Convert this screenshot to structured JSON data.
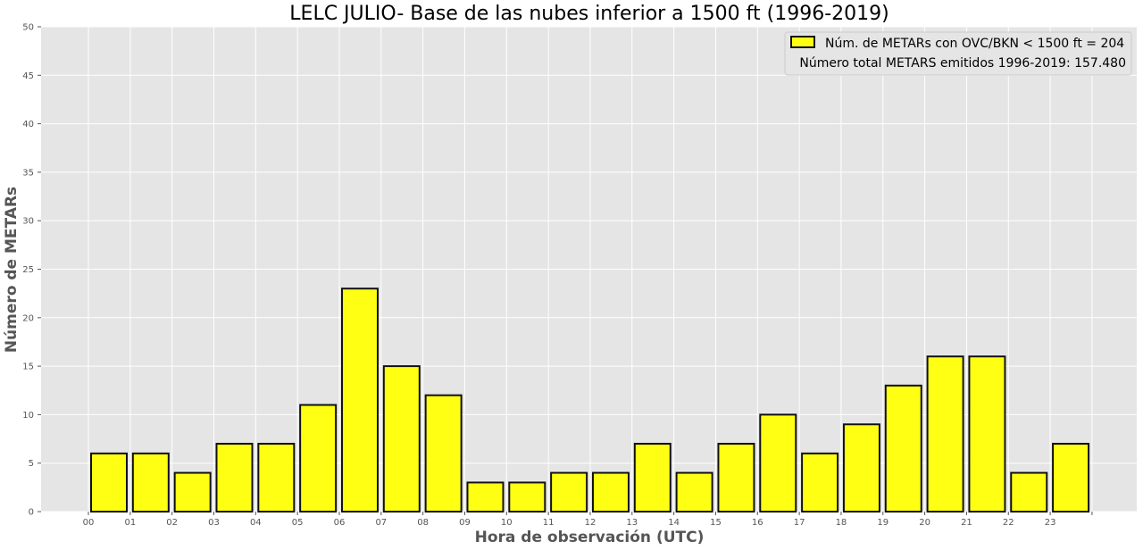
{
  "chart_data": {
    "type": "bar",
    "title": "LELC JULIO- Base de las nubes inferior a 1500 ft (1996-2019)",
    "xlabel": "Hora de observación (UTC)",
    "ylabel": "Número de METARs",
    "categories": [
      "00",
      "01",
      "02",
      "03",
      "04",
      "05",
      "06",
      "07",
      "08",
      "09",
      "10",
      "11",
      "12",
      "13",
      "14",
      "15",
      "16",
      "17",
      "18",
      "19",
      "20",
      "21",
      "22",
      "23"
    ],
    "series": [
      {
        "name": "Núm. de METARs con OVC/BKN < 1500 ft = 204",
        "values": [
          6,
          6,
          4,
          7,
          7,
          11,
          23,
          15,
          12,
          3,
          3,
          4,
          4,
          7,
          4,
          7,
          10,
          6,
          9,
          13,
          16,
          16,
          4,
          7
        ]
      }
    ],
    "ylim": [
      0,
      50
    ],
    "yticks": [
      "0",
      "5",
      "10",
      "15",
      "20",
      "25",
      "30",
      "35",
      "40",
      "45",
      "50"
    ],
    "legend_note": "Número total METARS emitidos 1996-2019: 157.480",
    "legend_position": "top-right",
    "grid": true,
    "colors": {
      "bar_fill": "#ffff14",
      "bar_edge": "#111111",
      "plot_background": "#e5e5e5",
      "grid": "#ffffff"
    }
  }
}
